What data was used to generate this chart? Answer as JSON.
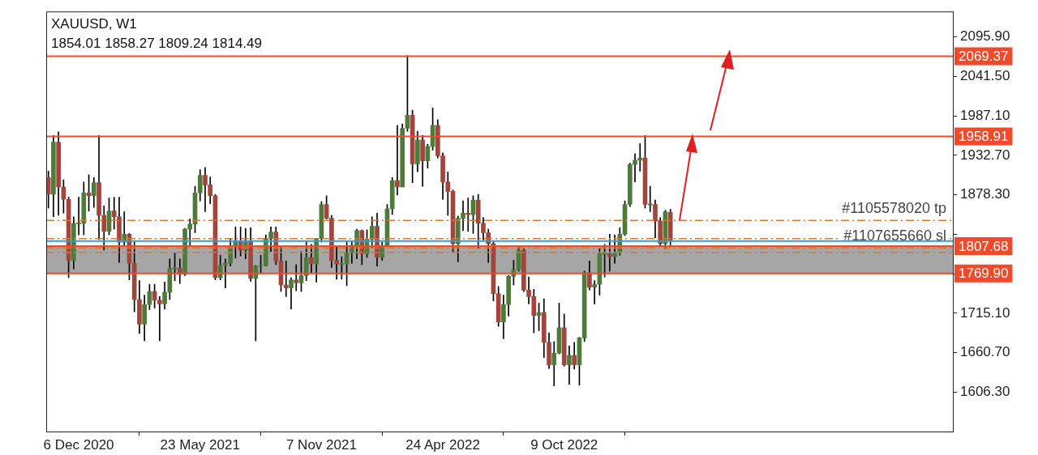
{
  "chart_data": {
    "type": "candlestick",
    "title": "XAUUSD, W1",
    "subtitle": "1854.01 1858.27 1809.24 1814.49",
    "colors": [
      "#a0463c",
      "#4e7a3a",
      "#a0463c",
      "#a0463c",
      "#a0463c",
      "#4e7a3a",
      "#4e7a3a",
      "#4e7a3a",
      "#a0463c",
      "#4e7a3a",
      "#a0463c",
      "#a0463c",
      "#4e7a3a",
      "#a0463c",
      "#a0463c",
      "#4e7a3a",
      "#a0463c",
      "#a0463c",
      "#a0463c",
      "#4e7a3a",
      "#4e7a3a",
      "#a0463c",
      "#a0463c",
      "#4e7a3a",
      "#4e7a3a",
      "#4e7a3a",
      "#a0463c",
      "#4e7a3a",
      "#4e7a3a",
      "#4e7a3a",
      "#4e7a3a",
      "#a0463c",
      "#a0463c",
      "#a0463c",
      "#4e7a3a",
      "#4e7a3a",
      "#4e7a3a",
      "#4e7a3a",
      "#a0463c",
      "#4e7a3a",
      "#a0463c",
      "#4e7a3a",
      "#4e7a3a",
      "#4e7a3a",
      "#4e7a3a",
      "#a0463c",
      "#a0463c",
      "#a0463c",
      "#4e7a3a",
      "#a0463c",
      "#4e7a3a",
      "#4e7a3a",
      "#a0463c",
      "#4e7a3a",
      "#4e7a3a",
      "#a0463c",
      "#a0463c",
      "#a0463c",
      "#4e7a3a",
      "#4e7a3a",
      "#4e7a3a",
      "#4e7a3a",
      "#a0463c",
      "#4e7a3a",
      "#4e7a3a",
      "#a0463c",
      "#4e7a3a",
      "#4e7a3a",
      "#4e7a3a",
      "#a0463c",
      "#4e7a3a",
      "#4e7a3a",
      "#a0463c",
      "#4e7a3a",
      "#a0463c",
      "#4e7a3a",
      "#4e7a3a",
      "#a0463c",
      "#a0463c",
      "#a0463c",
      "#a0463c",
      "#4e7a3a",
      "#4e7a3a",
      "#a0463c",
      "#4e7a3a",
      "#a0463c",
      "#a0463c",
      "#a0463c",
      "#a0463c",
      "#a0463c",
      "#4e7a3a",
      "#4e7a3a",
      "#4e7a3a",
      "#4e7a3a",
      "#a0463c",
      "#a0463c",
      "#a0463c",
      "#4e7a3a",
      "#a0463c",
      "#a0463c",
      "#4e7a3a",
      "#4e7a3a",
      "#a0463c",
      "#4e7a3a",
      "#a0463c",
      "#4e7a3a",
      "#4e7a3a",
      "#a0463c",
      "#4e7a3a",
      "#4e7a3a",
      "#4e7a3a",
      "#a0463c",
      "#4e7a3a",
      "#4e7a3a",
      "#4e7a3a",
      "#4e7a3a",
      "#4e7a3a",
      "#4e7a3a",
      "#a0463c",
      "#4e7a3a",
      "#a0463c",
      "#a0463c",
      "#4e7a3a",
      "#a0463c"
    ],
    "x": [
      "2020-10-25",
      "2020-11-01",
      "2020-11-08",
      "2020-11-15",
      "2020-11-22",
      "2020-11-29",
      "2020-12-06",
      "2020-12-13",
      "2020-12-20",
      "2020-12-27",
      "2021-01-03",
      "2021-01-10",
      "2021-01-17",
      "2021-01-24",
      "2021-01-31",
      "2021-02-07",
      "2021-02-14",
      "2021-02-21",
      "2021-02-28",
      "2021-03-07",
      "2021-03-14",
      "2021-03-21",
      "2021-03-28",
      "2021-04-04",
      "2021-04-11",
      "2021-04-18",
      "2021-04-25",
      "2021-05-02",
      "2021-05-09",
      "2021-05-16",
      "2021-05-23",
      "2021-05-30",
      "2021-06-06",
      "2021-06-13",
      "2021-06-20",
      "2021-06-27",
      "2021-07-04",
      "2021-07-11",
      "2021-07-18",
      "2021-07-25",
      "2021-08-01",
      "2021-08-08",
      "2021-08-15",
      "2021-08-22",
      "2021-08-29",
      "2021-09-05",
      "2021-09-12",
      "2021-09-19",
      "2021-09-26",
      "2021-10-03",
      "2021-10-10",
      "2021-10-17",
      "2021-10-24",
      "2021-10-31",
      "2021-11-07",
      "2021-11-14",
      "2021-11-21",
      "2021-11-28",
      "2021-12-05",
      "2021-12-12",
      "2021-12-19",
      "2021-12-26",
      "2022-01-02",
      "2022-01-09",
      "2022-01-16",
      "2022-01-23",
      "2022-01-30",
      "2022-02-06",
      "2022-02-13",
      "2022-02-20",
      "2022-02-27",
      "2022-03-06",
      "2022-03-13",
      "2022-03-20",
      "2022-03-27",
      "2022-04-03",
      "2022-04-10",
      "2022-04-17",
      "2022-04-24",
      "2022-05-01",
      "2022-05-08",
      "2022-05-15",
      "2022-05-22",
      "2022-05-29",
      "2022-06-05",
      "2022-06-12",
      "2022-06-19",
      "2022-06-26",
      "2022-07-03",
      "2022-07-10",
      "2022-07-17",
      "2022-07-24",
      "2022-07-31",
      "2022-08-07",
      "2022-08-14",
      "2022-08-21",
      "2022-08-28",
      "2022-09-04",
      "2022-09-11",
      "2022-09-18",
      "2022-09-25",
      "2022-10-02",
      "2022-10-09",
      "2022-10-16",
      "2022-10-23",
      "2022-10-30",
      "2022-11-06",
      "2022-11-13",
      "2022-11-20",
      "2022-11-27",
      "2022-12-04",
      "2022-12-11",
      "2022-12-18",
      "2022-12-25",
      "2023-01-01",
      "2023-01-08",
      "2023-01-15",
      "2023-01-22",
      "2023-01-29",
      "2023-02-05",
      "2023-02-12",
      "2023-02-19",
      "2023-02-26",
      "2023-03-05"
    ],
    "ohlc": [
      [
        1902,
        1911,
        1860,
        1879
      ],
      [
        1879,
        1960,
        1848,
        1951
      ],
      [
        1951,
        1965,
        1850,
        1889
      ],
      [
        1889,
        1899,
        1853,
        1872
      ],
      [
        1872,
        1875,
        1764,
        1788
      ],
      [
        1788,
        1848,
        1776,
        1839
      ],
      [
        1839,
        1875,
        1823,
        1839
      ],
      [
        1839,
        1896,
        1823,
        1881
      ],
      [
        1881,
        1906,
        1856,
        1877
      ],
      [
        1877,
        1902,
        1861,
        1895
      ],
      [
        1895,
        1960,
        1817,
        1850
      ],
      [
        1850,
        1863,
        1802,
        1828
      ],
      [
        1828,
        1874,
        1823,
        1856
      ],
      [
        1856,
        1875,
        1831,
        1848
      ],
      [
        1848,
        1875,
        1785,
        1813
      ],
      [
        1813,
        1855,
        1808,
        1824
      ],
      [
        1824,
        1825,
        1761,
        1784
      ],
      [
        1784,
        1815,
        1717,
        1734
      ],
      [
        1734,
        1760,
        1687,
        1700
      ],
      [
        1700,
        1740,
        1677,
        1727
      ],
      [
        1727,
        1755,
        1720,
        1745
      ],
      [
        1745,
        1755,
        1722,
        1733
      ],
      [
        1733,
        1738,
        1677,
        1728
      ],
      [
        1728,
        1758,
        1721,
        1744
      ],
      [
        1744,
        1790,
        1734,
        1777
      ],
      [
        1777,
        1798,
        1760,
        1777
      ],
      [
        1777,
        1790,
        1756,
        1769
      ],
      [
        1769,
        1832,
        1767,
        1831
      ],
      [
        1831,
        1845,
        1808,
        1838
      ],
      [
        1838,
        1890,
        1826,
        1881
      ],
      [
        1881,
        1913,
        1870,
        1905
      ],
      [
        1905,
        1916,
        1855,
        1892
      ],
      [
        1892,
        1903,
        1866,
        1877
      ],
      [
        1877,
        1879,
        1761,
        1764
      ],
      [
        1764,
        1795,
        1761,
        1781
      ],
      [
        1781,
        1790,
        1750,
        1784
      ],
      [
        1784,
        1818,
        1780,
        1808
      ],
      [
        1808,
        1834,
        1791,
        1815
      ],
      [
        1815,
        1834,
        1794,
        1802
      ],
      [
        1802,
        1832,
        1790,
        1814
      ],
      [
        1814,
        1833,
        1759,
        1763
      ],
      [
        1763,
        1781,
        1677,
        1780
      ],
      [
        1780,
        1795,
        1770,
        1781
      ],
      [
        1781,
        1823,
        1780,
        1818
      ],
      [
        1818,
        1834,
        1800,
        1827
      ],
      [
        1827,
        1834,
        1782,
        1787
      ],
      [
        1787,
        1808,
        1745,
        1754
      ],
      [
        1754,
        1787,
        1738,
        1750
      ],
      [
        1750,
        1764,
        1721,
        1761
      ],
      [
        1761,
        1782,
        1746,
        1757
      ],
      [
        1757,
        1800,
        1745,
        1767
      ],
      [
        1767,
        1814,
        1760,
        1792
      ],
      [
        1792,
        1810,
        1770,
        1783
      ],
      [
        1783,
        1818,
        1758,
        1818
      ],
      [
        1818,
        1869,
        1813,
        1865
      ],
      [
        1865,
        1877,
        1845,
        1846
      ],
      [
        1846,
        1850,
        1778,
        1788
      ],
      [
        1788,
        1808,
        1762,
        1783
      ],
      [
        1783,
        1793,
        1762,
        1783
      ],
      [
        1783,
        1815,
        1753,
        1798
      ],
      [
        1798,
        1815,
        1784,
        1809
      ],
      [
        1809,
        1831,
        1790,
        1829
      ],
      [
        1829,
        1830,
        1782,
        1797
      ],
      [
        1797,
        1830,
        1792,
        1817
      ],
      [
        1817,
        1848,
        1805,
        1835
      ],
      [
        1835,
        1853,
        1780,
        1792
      ],
      [
        1792,
        1813,
        1788,
        1807
      ],
      [
        1807,
        1865,
        1807,
        1859
      ],
      [
        1859,
        1902,
        1851,
        1898
      ],
      [
        1898,
        1974,
        1878,
        1889
      ],
      [
        1889,
        1976,
        1889,
        1970
      ],
      [
        1970,
        2070,
        1966,
        1988
      ],
      [
        1988,
        1995,
        1895,
        1921
      ],
      [
        1921,
        1966,
        1910,
        1954
      ],
      [
        1954,
        1960,
        1890,
        1925
      ],
      [
        1925,
        1948,
        1915,
        1945
      ],
      [
        1945,
        1998,
        1940,
        1974
      ],
      [
        1974,
        1982,
        1929,
        1932
      ],
      [
        1932,
        1936,
        1872,
        1896
      ],
      [
        1896,
        1910,
        1850,
        1883
      ],
      [
        1883,
        1885,
        1799,
        1811
      ],
      [
        1811,
        1849,
        1786,
        1846
      ],
      [
        1846,
        1870,
        1829,
        1853
      ],
      [
        1853,
        1874,
        1828,
        1851
      ],
      [
        1851,
        1877,
        1825,
        1871
      ],
      [
        1871,
        1879,
        1805,
        1839
      ],
      [
        1839,
        1847,
        1816,
        1826
      ],
      [
        1826,
        1831,
        1785,
        1811
      ],
      [
        1811,
        1813,
        1732,
        1742
      ],
      [
        1742,
        1752,
        1697,
        1703
      ],
      [
        1703,
        1740,
        1680,
        1727
      ],
      [
        1727,
        1767,
        1711,
        1766
      ],
      [
        1766,
        1788,
        1754,
        1775
      ],
      [
        1775,
        1807,
        1773,
        1802
      ],
      [
        1802,
        1804,
        1745,
        1747
      ],
      [
        1747,
        1765,
        1728,
        1738
      ],
      [
        1738,
        1748,
        1688,
        1712
      ],
      [
        1712,
        1729,
        1691,
        1716
      ],
      [
        1716,
        1735,
        1654,
        1675
      ],
      [
        1675,
        1688,
        1639,
        1644
      ],
      [
        1644,
        1676,
        1615,
        1660
      ],
      [
        1660,
        1729,
        1659,
        1695
      ],
      [
        1695,
        1714,
        1642,
        1644
      ],
      [
        1644,
        1670,
        1617,
        1657
      ],
      [
        1657,
        1675,
        1638,
        1644
      ],
      [
        1644,
        1682,
        1616,
        1681
      ],
      [
        1681,
        1773,
        1676,
        1771
      ],
      [
        1771,
        1787,
        1747,
        1751
      ],
      [
        1751,
        1760,
        1728,
        1755
      ],
      [
        1755,
        1804,
        1740,
        1797
      ],
      [
        1797,
        1810,
        1765,
        1797
      ],
      [
        1797,
        1824,
        1773,
        1793
      ],
      [
        1793,
        1823,
        1784,
        1798
      ],
      [
        1798,
        1833,
        1795,
        1824
      ],
      [
        1824,
        1870,
        1822,
        1865
      ],
      [
        1865,
        1922,
        1862,
        1920
      ],
      [
        1920,
        1935,
        1896,
        1926
      ],
      [
        1926,
        1949,
        1911,
        1929
      ],
      [
        1929,
        1960,
        1860,
        1865
      ],
      [
        1865,
        1890,
        1855,
        1865
      ],
      [
        1865,
        1871,
        1819,
        1842
      ],
      [
        1842,
        1847,
        1809,
        1811
      ],
      [
        1811,
        1857,
        1804,
        1855
      ],
      [
        1854.01,
        1858.27,
        1809.24,
        1814.49
      ]
    ],
    "xlim": [
      "2020-10-22",
      "2024-03-30"
    ],
    "xticks": [
      {
        "value": "2020-12-06",
        "label": "6 Dec 2020"
      },
      {
        "value": "2021-05-23",
        "label": "23 May 2021"
      },
      {
        "value": "2021-11-07",
        "label": "7 Nov 2021"
      },
      {
        "value": "2022-04-24",
        "label": "24 Apr 2022"
      },
      {
        "value": "2022-10-09",
        "label": "9 Oct 2022"
      }
    ],
    "ylim": [
      1552,
      2131
    ],
    "yticks": [
      {
        "value": 2095.9,
        "label": "2095.90"
      },
      {
        "value": 2041.5,
        "label": "2041.50"
      },
      {
        "value": 1987.1,
        "label": "1987.10"
      },
      {
        "value": 1932.7,
        "label": "1932.70"
      },
      {
        "value": 1878.3,
        "label": "1878.30"
      },
      {
        "value": 1823.9,
        "label": null
      },
      {
        "value": 1769.5,
        "label": null
      },
      {
        "value": 1715.1,
        "label": "1715.10"
      },
      {
        "value": 1660.7,
        "label": "1660.70"
      },
      {
        "value": 1606.3,
        "label": "1606.30"
      }
    ],
    "bands": [
      {
        "axis": "y",
        "from": 1769.9,
        "to": 1807.68,
        "color": "#a6a6a6"
      }
    ],
    "ref_lines": [
      {
        "axis": "y",
        "value": 2069.37,
        "label": "2069.37",
        "color": "#f04a2a",
        "line_style": "solid"
      },
      {
        "axis": "y",
        "value": 1958.91,
        "label": "1958.91",
        "color": "#f04a2a",
        "line_style": "solid"
      },
      {
        "axis": "y",
        "value": 1807.68,
        "label": "1807.68",
        "color": "#f04a2a",
        "line_style": "solid"
      },
      {
        "axis": "y",
        "value": 1769.9,
        "label": "1769.90",
        "color": "#f04a2a",
        "line_style": "solid"
      },
      {
        "axis": "y",
        "value": 1843,
        "label": "#1105578020 tp",
        "color": "#d2783c",
        "line_style": "dashed"
      },
      {
        "axis": "y",
        "value": 1818,
        "color": "#d2783c",
        "line_style": "dashed"
      },
      {
        "axis": "y",
        "value": 1805,
        "label": "#1107655660 sl",
        "color": "#d2783c",
        "line_style": "dashed"
      },
      {
        "axis": "y",
        "value": 1799,
        "color": "#d2783c",
        "line_style": "dashed"
      },
      {
        "axis": "y",
        "value": 1814.49,
        "color": "#3a9ad9",
        "line_style": "solid"
      }
    ],
    "grid": false,
    "legend": false
  }
}
